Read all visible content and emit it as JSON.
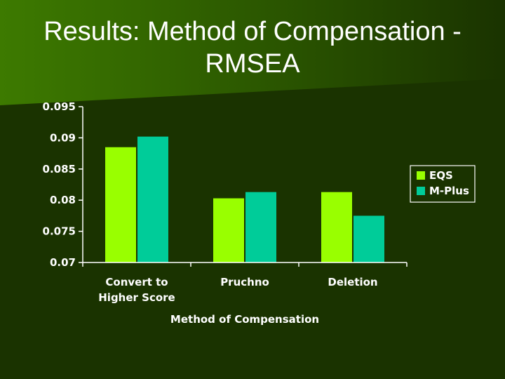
{
  "slide": {
    "title_line1": "Results: Method of Compensation -",
    "title_line2": "RMSEA"
  },
  "colors": {
    "background": "#1a3300",
    "background_light": "#3d7a00",
    "axis": "#ffffff"
  },
  "chart_data": {
    "type": "bar",
    "title": "",
    "xlabel": "Method of Compensation",
    "ylabel": "",
    "categories": [
      [
        "Convert to",
        "Higher Score"
      ],
      [
        "Pruchno"
      ],
      [
        "Deletion"
      ]
    ],
    "series": [
      {
        "name": "EQS",
        "color": "#99ff00",
        "values": [
          0.0885,
          0.0803,
          0.0813
        ]
      },
      {
        "name": "M-Plus",
        "color": "#00cc99",
        "values": [
          0.0902,
          0.0813,
          0.0775
        ]
      }
    ],
    "ylim": [
      0.07,
      0.095
    ],
    "yticks": [
      "0.07",
      "0.075",
      "0.08",
      "0.085",
      "0.09",
      "0.095"
    ],
    "grid": false,
    "legend": "right"
  }
}
